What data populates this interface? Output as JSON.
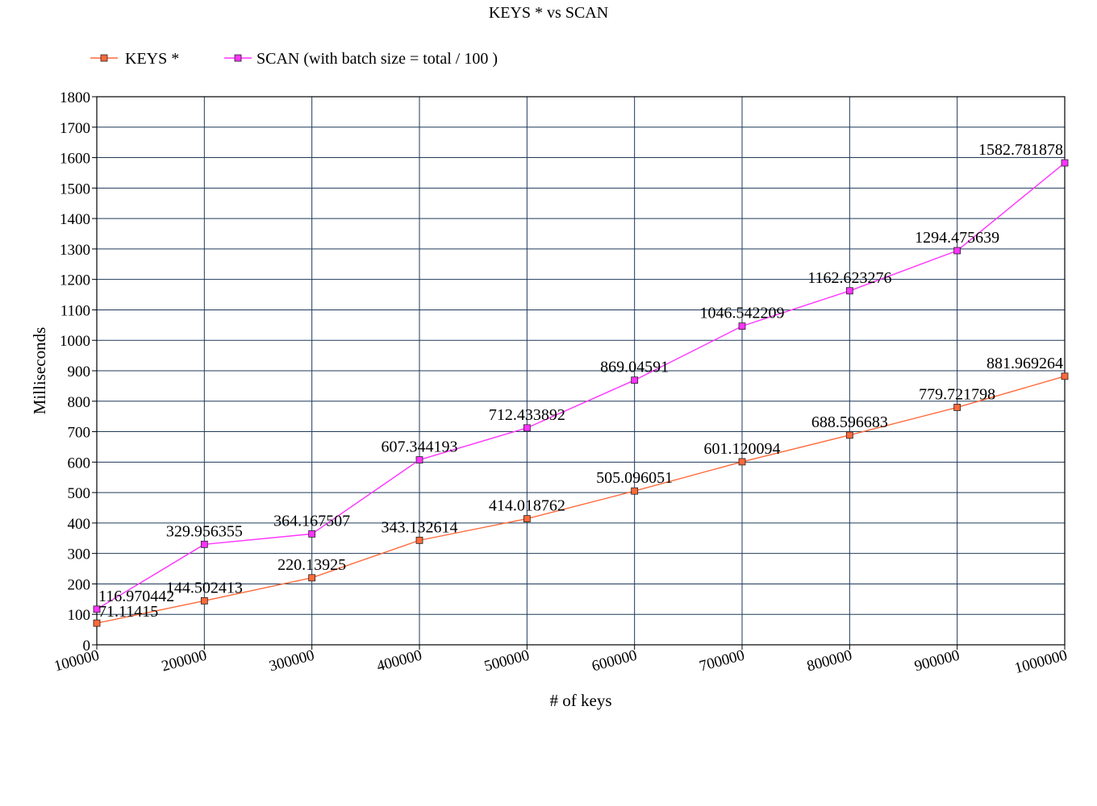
{
  "chart_data": {
    "type": "line",
    "title": "KEYS * vs SCAN",
    "xlabel": "# of keys",
    "ylabel": "Milliseconds",
    "x": [
      100000,
      200000,
      300000,
      400000,
      500000,
      600000,
      700000,
      800000,
      900000,
      1000000
    ],
    "x_tick_labels": [
      "100000",
      "200000",
      "300000",
      "400000",
      "500000",
      "600000",
      "700000",
      "800000",
      "900000",
      "1000000"
    ],
    "ylim": [
      0,
      1800
    ],
    "y_ticks": [
      0,
      100,
      200,
      300,
      400,
      500,
      600,
      700,
      800,
      900,
      1000,
      1100,
      1200,
      1300,
      1400,
      1500,
      1600,
      1700,
      1800
    ],
    "grid": true,
    "legend_position": "top-left",
    "series": [
      {
        "name": "KEYS *",
        "color": "#ff6a3a",
        "marker_fill": "#ff6a3a",
        "values": [
          71.11415,
          144.502413,
          220.13925,
          343.132614,
          414.018762,
          505.096051,
          601.120094,
          688.596683,
          779.721798,
          881.969264
        ],
        "labels": [
          "71.11415",
          "144.502413",
          "220.13925",
          "343.132614",
          "414.018762",
          "505.096051",
          "601.120094",
          "688.596683",
          "779.721798",
          "881.969264"
        ]
      },
      {
        "name": "SCAN (with batch size = total / 100 )",
        "color": "#ff33ff",
        "marker_fill": "#ff33ff",
        "values": [
          116.970442,
          329.956355,
          364.167507,
          607.344193,
          712.433892,
          869.04591,
          1046.542209,
          1162.623276,
          1294.475639,
          1582.781878
        ],
        "labels": [
          "116.970442",
          "329.956355",
          "364.167507",
          "607.344193",
          "712.433892",
          "869.04591",
          "1046.542209",
          "1162.623276",
          "1294.475639",
          "1582.781878"
        ]
      }
    ],
    "grid_color": "#1f3a5a"
  }
}
